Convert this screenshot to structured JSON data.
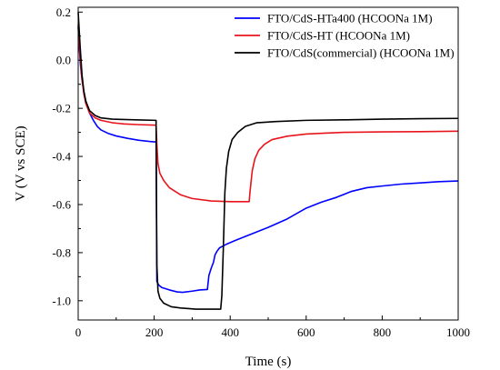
{
  "chart_data": {
    "type": "line",
    "xlabel": "Time (s)",
    "ylabel": "V (V vs SCE)",
    "xlim": [
      0,
      1000
    ],
    "ylim": [
      -1.08,
      0.22
    ],
    "xticks": [
      0,
      200,
      400,
      600,
      800,
      1000
    ],
    "yticks": [
      0.2,
      0.0,
      -0.2,
      -0.4,
      -0.6,
      -0.8,
      -1.0
    ],
    "xtick_labels": [
      "0",
      "200",
      "400",
      "600",
      "800",
      "1000"
    ],
    "ytick_labels": [
      "0.2",
      "0.0",
      "-0.2",
      "-0.4",
      "-0.6",
      "-0.8",
      "-1.0"
    ],
    "grid": false,
    "legend_position": "top-right",
    "series": [
      {
        "name": "FTO/CdS-HTa400 (HCOONa 1M)",
        "color": "#0000ff",
        "points": [
          [
            0,
            0.14
          ],
          [
            3,
            0.05
          ],
          [
            6,
            -0.02
          ],
          [
            10,
            -0.08
          ],
          [
            15,
            -0.13
          ],
          [
            20,
            -0.17
          ],
          [
            30,
            -0.22
          ],
          [
            40,
            -0.25
          ],
          [
            50,
            -0.275
          ],
          [
            60,
            -0.29
          ],
          [
            80,
            -0.305
          ],
          [
            100,
            -0.315
          ],
          [
            130,
            -0.325
          ],
          [
            160,
            -0.333
          ],
          [
            190,
            -0.338
          ],
          [
            205,
            -0.34
          ],
          [
            207,
            -0.92
          ],
          [
            212,
            -0.935
          ],
          [
            220,
            -0.945
          ],
          [
            240,
            -0.955
          ],
          [
            260,
            -0.963
          ],
          [
            275,
            -0.965
          ],
          [
            300,
            -0.96
          ],
          [
            320,
            -0.955
          ],
          [
            340,
            -0.953
          ],
          [
            344,
            -0.895
          ],
          [
            350,
            -0.865
          ],
          [
            356,
            -0.84
          ],
          [
            360,
            -0.81
          ],
          [
            365,
            -0.795
          ],
          [
            372,
            -0.78
          ],
          [
            390,
            -0.765
          ],
          [
            420,
            -0.745
          ],
          [
            460,
            -0.72
          ],
          [
            500,
            -0.695
          ],
          [
            550,
            -0.66
          ],
          [
            600,
            -0.615
          ],
          [
            640,
            -0.59
          ],
          [
            680,
            -0.57
          ],
          [
            720,
            -0.545
          ],
          [
            760,
            -0.53
          ],
          [
            800,
            -0.523
          ],
          [
            850,
            -0.515
          ],
          [
            900,
            -0.51
          ],
          [
            950,
            -0.505
          ],
          [
            1000,
            -0.502
          ]
        ]
      },
      {
        "name": "FTO/CdS-HT (HCOONa 1M)",
        "color": "#e8141c",
        "points": [
          [
            0,
            0.15
          ],
          [
            5,
            0.02
          ],
          [
            10,
            -0.08
          ],
          [
            15,
            -0.14
          ],
          [
            20,
            -0.18
          ],
          [
            30,
            -0.22
          ],
          [
            45,
            -0.24
          ],
          [
            60,
            -0.25
          ],
          [
            90,
            -0.26
          ],
          [
            120,
            -0.265
          ],
          [
            160,
            -0.268
          ],
          [
            205,
            -0.27
          ],
          [
            207,
            -0.35
          ],
          [
            210,
            -0.43
          ],
          [
            215,
            -0.47
          ],
          [
            225,
            -0.5
          ],
          [
            240,
            -0.53
          ],
          [
            270,
            -0.56
          ],
          [
            300,
            -0.575
          ],
          [
            350,
            -0.585
          ],
          [
            400,
            -0.588
          ],
          [
            450,
            -0.588
          ],
          [
            452,
            -0.55
          ],
          [
            458,
            -0.46
          ],
          [
            465,
            -0.41
          ],
          [
            475,
            -0.375
          ],
          [
            490,
            -0.35
          ],
          [
            510,
            -0.33
          ],
          [
            550,
            -0.316
          ],
          [
            600,
            -0.307
          ],
          [
            650,
            -0.303
          ],
          [
            700,
            -0.3
          ],
          [
            800,
            -0.298
          ],
          [
            900,
            -0.297
          ],
          [
            1000,
            -0.295
          ]
        ]
      },
      {
        "name": "FTO/CdS(commercial) (HCOONa 1M)",
        "color": "#000000",
        "points": [
          [
            0,
            0.2
          ],
          [
            5,
            0.06
          ],
          [
            10,
            -0.06
          ],
          [
            15,
            -0.13
          ],
          [
            20,
            -0.17
          ],
          [
            30,
            -0.21
          ],
          [
            45,
            -0.23
          ],
          [
            60,
            -0.24
          ],
          [
            90,
            -0.245
          ],
          [
            150,
            -0.248
          ],
          [
            205,
            -0.25
          ],
          [
            207,
            -0.85
          ],
          [
            210,
            -0.96
          ],
          [
            215,
            -0.99
          ],
          [
            225,
            -1.01
          ],
          [
            245,
            -1.025
          ],
          [
            270,
            -1.03
          ],
          [
            310,
            -1.035
          ],
          [
            340,
            -1.035
          ],
          [
            375,
            -1.035
          ],
          [
            378,
            -0.98
          ],
          [
            382,
            -0.78
          ],
          [
            386,
            -0.55
          ],
          [
            390,
            -0.45
          ],
          [
            396,
            -0.38
          ],
          [
            405,
            -0.33
          ],
          [
            420,
            -0.3
          ],
          [
            440,
            -0.275
          ],
          [
            470,
            -0.26
          ],
          [
            520,
            -0.255
          ],
          [
            600,
            -0.25
          ],
          [
            700,
            -0.248
          ],
          [
            800,
            -0.245
          ],
          [
            900,
            -0.243
          ],
          [
            1000,
            -0.242
          ]
        ]
      }
    ]
  }
}
